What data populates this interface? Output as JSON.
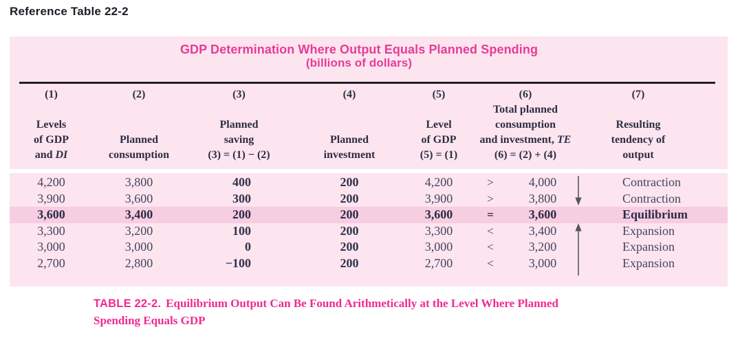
{
  "page": {
    "heading": "Reference Table 22-2"
  },
  "table": {
    "title_line1": "GDP Determination Where Output Equals Planned Spending",
    "title_line2": "(billions of dollars)",
    "columns": [
      {
        "num": "(1)",
        "lines": [
          "Levels",
          "of GDP",
          "and |DI|"
        ]
      },
      {
        "num": "(2)",
        "lines": [
          "Planned",
          "consumption"
        ]
      },
      {
        "num": "(3)",
        "lines": [
          "Planned",
          "saving",
          "(3) = (1) − (2)"
        ]
      },
      {
        "num": "(4)",
        "lines": [
          "Planned",
          "investment"
        ]
      },
      {
        "num": "(5)",
        "lines": [
          "Level",
          "of GDP",
          "(5) = (1)"
        ]
      },
      {
        "num": "(6)",
        "lines": [
          "Total planned",
          "consumption",
          "and investment, |TE|",
          "(6) = (2) + (4)"
        ]
      },
      {
        "num": "(7)",
        "lines": [
          "Resulting",
          "tendency of",
          "output"
        ]
      }
    ],
    "rows": [
      {
        "gdp_di": "4,200",
        "consumption": "3,800",
        "saving": "400",
        "investment": "200",
        "gdp": "4,200",
        "relation": ">",
        "te": "4,000",
        "tendency": "Contraction"
      },
      {
        "gdp_di": "3,900",
        "consumption": "3,600",
        "saving": "300",
        "investment": "200",
        "gdp": "3,900",
        "relation": ">",
        "te": "3,800",
        "tendency": "Contraction"
      },
      {
        "gdp_di": "3,600",
        "consumption": "3,400",
        "saving": "200",
        "investment": "200",
        "gdp": "3,600",
        "relation": "=",
        "te": "3,600",
        "tendency": "Equilibrium"
      },
      {
        "gdp_di": "3,300",
        "consumption": "3,200",
        "saving": "100",
        "investment": "200",
        "gdp": "3,300",
        "relation": "<",
        "te": "3,400",
        "tendency": "Expansion"
      },
      {
        "gdp_di": "3,000",
        "consumption": "3,000",
        "saving": "0",
        "investment": "200",
        "gdp": "3,000",
        "relation": "<",
        "te": "3,200",
        "tendency": "Expansion"
      },
      {
        "gdp_di": "2,700",
        "consumption": "2,800",
        "saving": "−100",
        "investment": "200",
        "gdp": "2,700",
        "relation": "<",
        "te": "3,000",
        "tendency": "Expansion"
      }
    ],
    "caption": {
      "label": "TABLE 22-2.",
      "line1": "Equilibrium Output Can Be Found Arithmetically at the Level Where Planned",
      "line2": "Spending Equals GDP"
    },
    "colors": {
      "table_background": "#fce5ef",
      "highlight_row": "#f7cde1",
      "title_magenta": "#e83a98",
      "caption_magenta": "#ef2a90",
      "ink": "#2d2d44",
      "rule": "#232026",
      "arrow": "#55555e"
    }
  }
}
